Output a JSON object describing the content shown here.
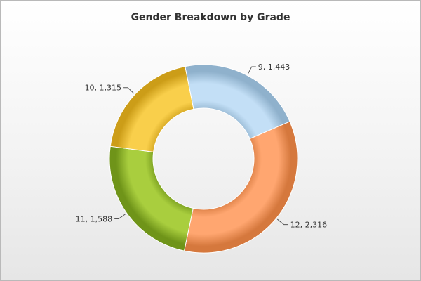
{
  "chart_data": {
    "type": "pie",
    "variant": "doughnut",
    "title": "Gender Breakdown by Grade",
    "categories": [
      "9",
      "12",
      "11",
      "10"
    ],
    "values": [
      1443,
      2316,
      1588,
      1315
    ],
    "labels": [
      "9, 1,443",
      "12, 2,316",
      "11, 1,588",
      "10, 1,315"
    ],
    "colors": [
      "#c3dff6",
      "#ffa670",
      "#a9ce3e",
      "#f9cf4b"
    ],
    "edge_colors": [
      "#8fb1cc",
      "#d5783d",
      "#6f9419",
      "#cc9d18"
    ]
  }
}
